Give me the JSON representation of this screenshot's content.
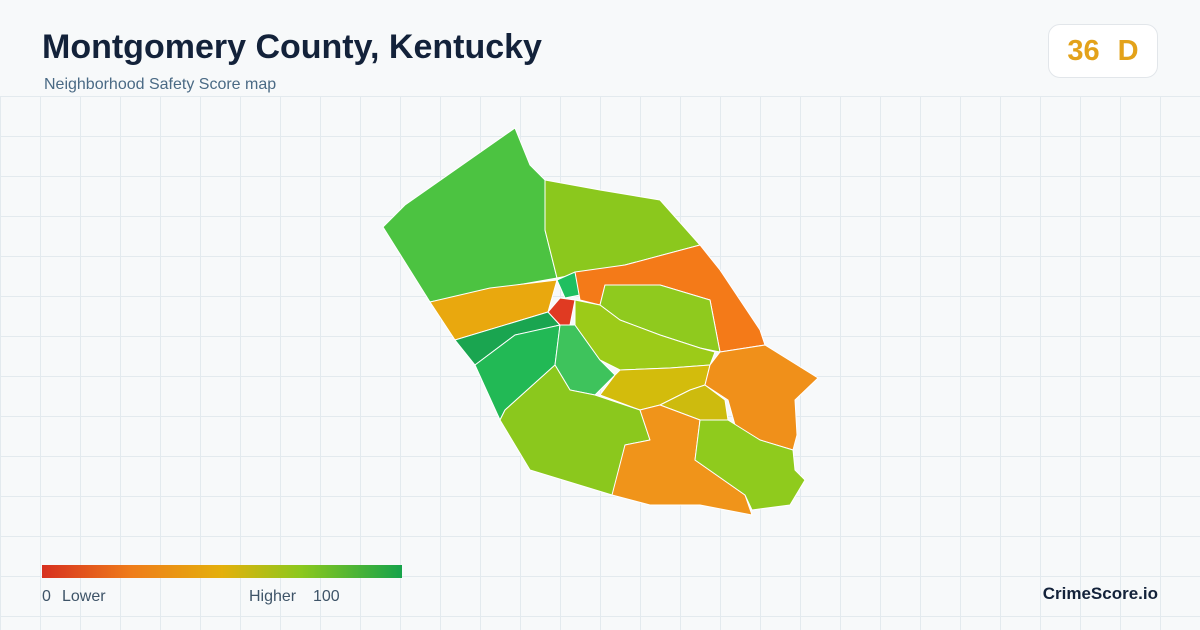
{
  "header": {
    "title": "Montgomery County, Kentucky",
    "subtitle": "Neighborhood Safety Score map"
  },
  "score": {
    "value": 36,
    "grade": "D"
  },
  "legend": {
    "min": 0,
    "min_label": "Lower",
    "max_label": "Higher",
    "max": 100
  },
  "brand": "CrimeScore.io"
}
